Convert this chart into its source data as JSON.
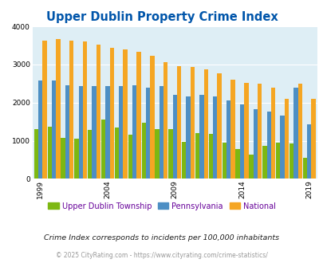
{
  "title": "Upper Dublin Property Crime Index",
  "title_color": "#0055aa",
  "years": [
    1999,
    2000,
    2001,
    2002,
    2003,
    2004,
    2005,
    2006,
    2007,
    2008,
    2009,
    2010,
    2011,
    2012,
    2013,
    2014,
    2015,
    2016,
    2017,
    2018,
    2019
  ],
  "upper_dublin": [
    1300,
    1360,
    1080,
    1060,
    1280,
    1560,
    1340,
    1160,
    1480,
    1300,
    1300,
    970,
    1195,
    1180,
    950,
    775,
    630,
    860,
    950,
    930,
    550
  ],
  "pennsylvania": [
    2580,
    2570,
    2460,
    2430,
    2430,
    2430,
    2440,
    2450,
    2390,
    2440,
    2210,
    2160,
    2200,
    2160,
    2060,
    1950,
    1820,
    1760,
    1650,
    2390,
    1420
  ],
  "national": [
    3620,
    3660,
    3630,
    3600,
    3520,
    3430,
    3400,
    3330,
    3220,
    3050,
    2960,
    2940,
    2880,
    2760,
    2610,
    2510,
    2490,
    2390,
    2100,
    2500,
    2095
  ],
  "colors": {
    "upper_dublin": "#7db812",
    "pennsylvania": "#4d8fc4",
    "national": "#f5a623"
  },
  "bg_color": "#deeef5",
  "ylim": [
    0,
    4000
  ],
  "yticks": [
    0,
    1000,
    2000,
    3000,
    4000
  ],
  "xtick_labels": [
    "1999",
    "2004",
    "2009",
    "2014",
    "2019"
  ],
  "xtick_positions": [
    1999,
    2004,
    2009,
    2014,
    2019
  ],
  "legend_labels": [
    "Upper Dublin Township",
    "Pennsylvania",
    "National"
  ],
  "legend_text_color": "#660099",
  "footnote1": "Crime Index corresponds to incidents per 100,000 inhabitants",
  "footnote2": "© 2025 CityRating.com - https://www.cityrating.com/crime-statistics/",
  "footnote1_color": "#222222",
  "footnote2_color": "#999999"
}
